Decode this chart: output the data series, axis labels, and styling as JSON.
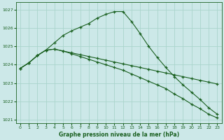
{
  "xlabel": "Graphe pression niveau de la mer (hPa)",
  "bg_color": "#cce8e8",
  "grid_color": "#aad4cc",
  "line_color": "#1a6020",
  "xlim_min": -0.5,
  "xlim_max": 23.5,
  "ylim_min": 1020.8,
  "ylim_max": 1027.4,
  "yticks": [
    1021,
    1022,
    1023,
    1024,
    1025,
    1026,
    1027
  ],
  "xticks": [
    0,
    1,
    2,
    3,
    4,
    5,
    6,
    7,
    8,
    9,
    10,
    11,
    12,
    13,
    14,
    15,
    16,
    17,
    18,
    19,
    20,
    21,
    22,
    23
  ],
  "line1": [
    1023.8,
    1024.1,
    1024.5,
    1024.8,
    1025.2,
    1025.6,
    1025.85,
    1026.05,
    1026.25,
    1026.55,
    1026.75,
    1026.9,
    1026.9,
    1026.35,
    1025.7,
    1025.0,
    1024.4,
    1023.85,
    1023.35,
    1022.9,
    1022.5,
    1022.1,
    1021.65,
    1021.3
  ],
  "line2": [
    1023.8,
    1024.1,
    1024.5,
    1024.8,
    1024.85,
    1024.75,
    1024.65,
    1024.55,
    1024.45,
    1024.35,
    1024.25,
    1024.15,
    1024.05,
    1023.95,
    1023.85,
    1023.75,
    1023.65,
    1023.55,
    1023.45,
    1023.35,
    1023.25,
    1023.15,
    1023.05,
    1022.95
  ],
  "line3": [
    1023.8,
    1024.1,
    1024.5,
    1024.8,
    1024.85,
    1024.75,
    1024.6,
    1024.45,
    1024.3,
    1024.15,
    1024.0,
    1023.85,
    1023.7,
    1023.5,
    1023.3,
    1023.1,
    1022.9,
    1022.7,
    1022.4,
    1022.15,
    1021.85,
    1021.6,
    1021.3,
    1021.1
  ]
}
